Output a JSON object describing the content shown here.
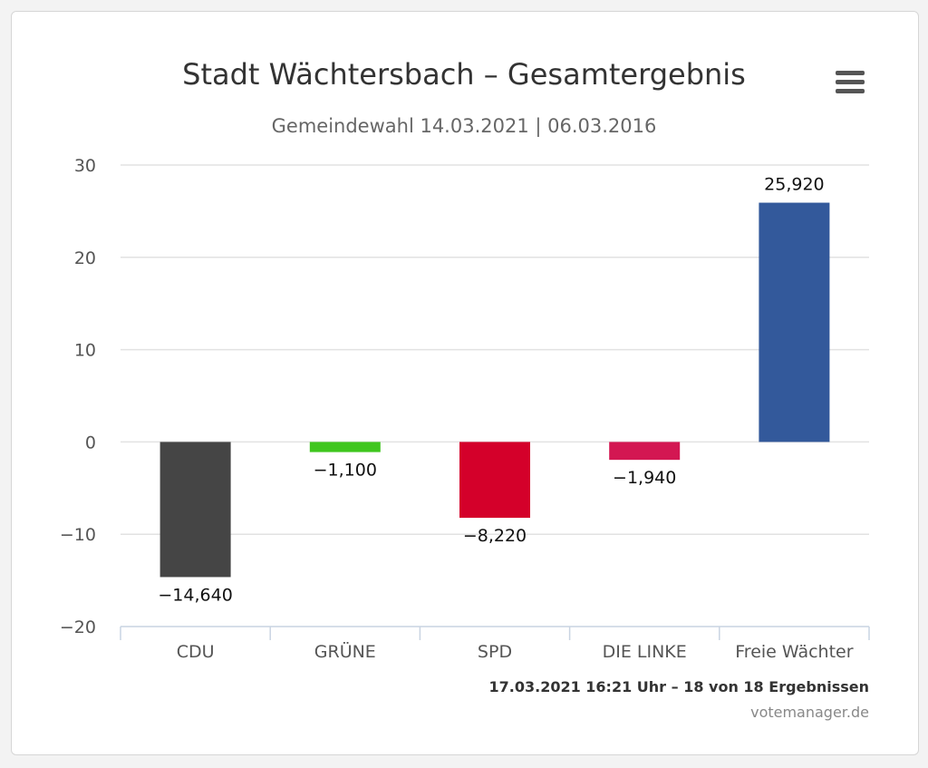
{
  "chart_data": {
    "type": "bar",
    "title": "Stadt Wächtersbach – Gesamtergebnis",
    "subtitle": "Gemeindewahl 14.03.2021 | 06.03.2016",
    "categories": [
      "CDU",
      "GRÜNE",
      "SPD",
      "DIE LINKE",
      "Freie Wächter"
    ],
    "values": [
      -14.64,
      -1.1,
      -8.22,
      -1.94,
      25.92
    ],
    "data_labels": [
      "−14,640",
      "−1,100",
      "−8,220",
      "−1,940",
      "25,920"
    ],
    "colors": [
      "#454545",
      "#3fc61e",
      "#d4002a",
      "#d31752",
      "#33599b"
    ],
    "ylim": [
      -20,
      30
    ],
    "yticks": [
      30,
      20,
      10,
      0,
      -10,
      -20
    ],
    "ytick_labels": [
      "30",
      "20",
      "10",
      "0",
      "−10",
      "−20"
    ],
    "grid": true,
    "legend": false
  },
  "footer": {
    "timestamp": "17.03.2021 16:21 Uhr – 18 von 18 Ergebnissen",
    "credit": "votemanager.de"
  },
  "menu": {
    "icon": "hamburger-menu-icon"
  }
}
